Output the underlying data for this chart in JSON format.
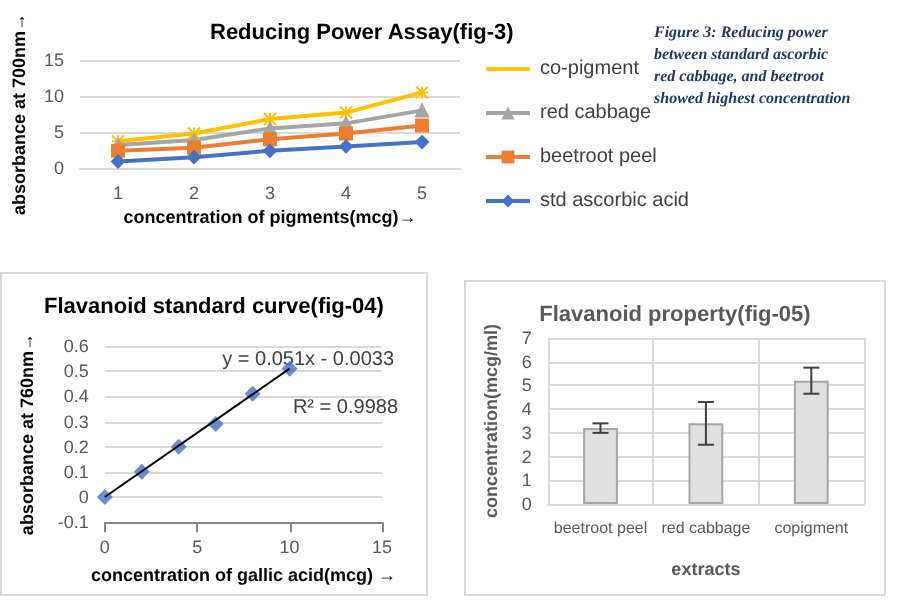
{
  "chart_data": [
    {
      "type": "line",
      "title": "Reducing Power Assay(fig-3)",
      "xlabel": "concentration of pigments(mcg)→",
      "ylabel": "absorbance at 700nm→",
      "categories": [
        "1",
        "2",
        "3",
        "4",
        "5"
      ],
      "ylim": [
        0,
        15
      ],
      "yticks": [
        0,
        5,
        10,
        15
      ],
      "grid": "y",
      "legend": "right",
      "series": [
        {
          "name": "co-pigment",
          "color": "#ffc000",
          "marker": "cross",
          "values": [
            3.7,
            4.8,
            6.8,
            7.7,
            10.5
          ]
        },
        {
          "name": "red cabbage",
          "color": "#a5a5a5",
          "marker": "triangle",
          "values": [
            3.2,
            3.9,
            5.5,
            6.2,
            8.0
          ]
        },
        {
          "name": "beetroot peel",
          "color": "#ed7d31",
          "marker": "square",
          "values": [
            2.4,
            2.8,
            4.0,
            4.8,
            5.9
          ]
        },
        {
          "name": "std ascorbic acid",
          "color": "#4472c4",
          "marker": "diamond",
          "values": [
            0.9,
            1.5,
            2.4,
            3.0,
            3.6
          ]
        }
      ],
      "annotations": [
        "Figure 3: Reducing power",
        "between standard ascorbic",
        "red cabbage, and beetroot",
        "showed highest concentration"
      ]
    },
    {
      "type": "scatter",
      "title": "Flavanoid standard curve(fig-04)",
      "xlabel": "concentration of gallic acid(mcg) →",
      "ylabel": "absorbance at 760nm→",
      "xlim": [
        0,
        15
      ],
      "xticks": [
        0,
        5,
        10,
        15
      ],
      "ylim": [
        -0.1,
        0.6
      ],
      "yticks": [
        -0.1,
        0,
        0.1,
        0.2,
        0.3,
        0.4,
        0.5,
        0.6
      ],
      "grid": "y",
      "series": [
        {
          "type": "scatter",
          "color": "#4472c4",
          "marker": "diamond",
          "x": [
            0,
            2,
            4,
            6,
            8,
            10
          ],
          "values": [
            0,
            0.1,
            0.2,
            0.29,
            0.41,
            0.51
          ]
        },
        {
          "type": "line",
          "color": "#000000",
          "x": [
            0,
            10
          ],
          "values": [
            0,
            0.51
          ]
        }
      ],
      "annotations": [
        "y = 0.051x - 0.0033",
        "R² = 0.9988"
      ]
    },
    {
      "type": "bar",
      "title": "Flavanoid property(fig-05)",
      "xlabel": "extracts",
      "ylabel": "concentration(mcg/ml)",
      "categories": [
        "beetroot peel",
        "red cabbage",
        "copigment"
      ],
      "values": [
        3.2,
        3.4,
        5.2
      ],
      "errors": [
        0.2,
        0.9,
        0.55
      ],
      "color": "#e0e0e0",
      "ylim": [
        0,
        7
      ],
      "yticks": [
        0,
        1,
        2,
        3,
        4,
        5,
        6,
        7
      ],
      "grid": true
    }
  ]
}
